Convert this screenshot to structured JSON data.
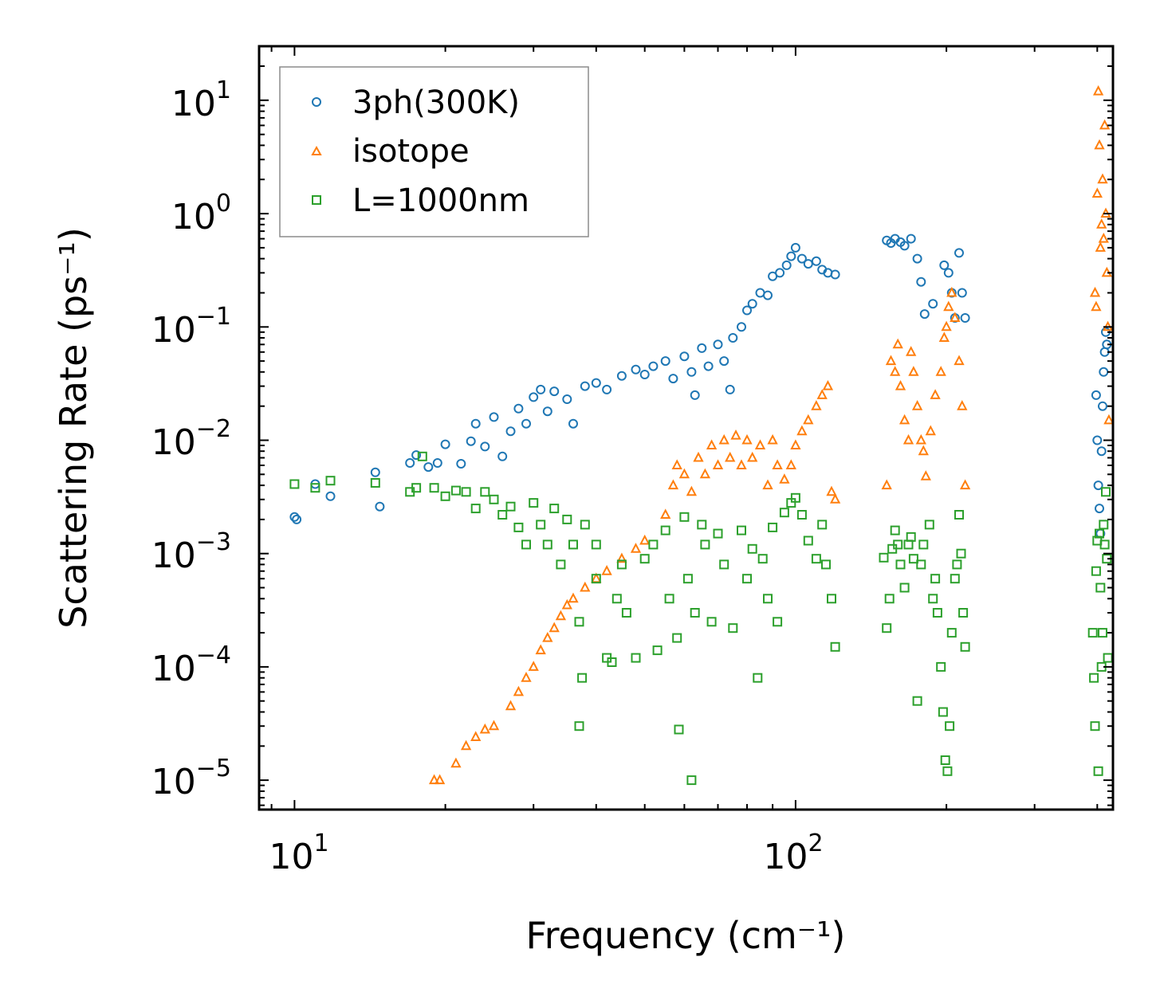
{
  "chart_data": {
    "type": "scatter",
    "title": "",
    "xlabel": "Frequency (cm⁻¹)",
    "ylabel": "Scattering Rate (ps⁻¹)",
    "xscale": "log",
    "yscale": "log",
    "xlim": [
      8.5,
      430
    ],
    "ylim": [
      5.5e-06,
      30
    ],
    "grid": false,
    "legend_position": "top-left",
    "x_tick_labels": [
      {
        "value": 10,
        "base": "10",
        "exp": "1"
      },
      {
        "value": 100,
        "base": "10",
        "exp": "2"
      }
    ],
    "y_tick_labels": [
      {
        "value": 10,
        "base": "10",
        "exp": "1"
      },
      {
        "value": 1,
        "base": "10",
        "exp": "0"
      },
      {
        "value": 0.1,
        "base": "10",
        "exp": "−1"
      },
      {
        "value": 0.01,
        "base": "10",
        "exp": "−2"
      },
      {
        "value": 0.001,
        "base": "10",
        "exp": "−3"
      },
      {
        "value": 0.0001,
        "base": "10",
        "exp": "−4"
      },
      {
        "value": 1e-05,
        "base": "10",
        "exp": "−5"
      }
    ],
    "series": [
      {
        "name": "3ph(300K)",
        "marker": "circle",
        "color": "#1f77b4",
        "points": [
          [
            10,
            0.0021
          ],
          [
            10.1,
            0.002
          ],
          [
            11,
            0.0041
          ],
          [
            11.8,
            0.0032
          ],
          [
            14.5,
            0.0052
          ],
          [
            14.8,
            0.0026
          ],
          [
            17,
            0.0063
          ],
          [
            17.5,
            0.0074
          ],
          [
            18.5,
            0.0058
          ],
          [
            19.3,
            0.0063
          ],
          [
            20,
            0.0092
          ],
          [
            21.5,
            0.0062
          ],
          [
            22.5,
            0.0098
          ],
          [
            23,
            0.014
          ],
          [
            24,
            0.0088
          ],
          [
            25,
            0.016
          ],
          [
            26,
            0.0072
          ],
          [
            27,
            0.012
          ],
          [
            28,
            0.019
          ],
          [
            29,
            0.014
          ],
          [
            30,
            0.024
          ],
          [
            31,
            0.028
          ],
          [
            32,
            0.018
          ],
          [
            33,
            0.027
          ],
          [
            35,
            0.023
          ],
          [
            36,
            0.014
          ],
          [
            38,
            0.03
          ],
          [
            40,
            0.032
          ],
          [
            42,
            0.028
          ],
          [
            45,
            0.037
          ],
          [
            48,
            0.042
          ],
          [
            50,
            0.038
          ],
          [
            52,
            0.045
          ],
          [
            55,
            0.05
          ],
          [
            57,
            0.035
          ],
          [
            60,
            0.055
          ],
          [
            62,
            0.04
          ],
          [
            63,
            0.025
          ],
          [
            65,
            0.065
          ],
          [
            67,
            0.045
          ],
          [
            70,
            0.07
          ],
          [
            72,
            0.05
          ],
          [
            74,
            0.028
          ],
          [
            75,
            0.08
          ],
          [
            78,
            0.1
          ],
          [
            80,
            0.14
          ],
          [
            82,
            0.16
          ],
          [
            85,
            0.2
          ],
          [
            88,
            0.19
          ],
          [
            90,
            0.28
          ],
          [
            93,
            0.3
          ],
          [
            96,
            0.35
          ],
          [
            98,
            0.42
          ],
          [
            100,
            0.5
          ],
          [
            103,
            0.4
          ],
          [
            106,
            0.36
          ],
          [
            110,
            0.38
          ],
          [
            113,
            0.32
          ],
          [
            116,
            0.3
          ],
          [
            120,
            0.29
          ],
          [
            152,
            0.58
          ],
          [
            155,
            0.55
          ],
          [
            158,
            0.6
          ],
          [
            162,
            0.56
          ],
          [
            165,
            0.52
          ],
          [
            170,
            0.6
          ],
          [
            175,
            0.4
          ],
          [
            178,
            0.25
          ],
          [
            181,
            0.13
          ],
          [
            188,
            0.16
          ],
          [
            198,
            0.35
          ],
          [
            202,
            0.3
          ],
          [
            205,
            0.2
          ],
          [
            208,
            0.12
          ],
          [
            212,
            0.45
          ],
          [
            215,
            0.2
          ],
          [
            218,
            0.12
          ],
          [
            398,
            0.025
          ],
          [
            400,
            0.01
          ],
          [
            402,
            0.004
          ],
          [
            404,
            0.0025
          ],
          [
            406,
            0.0015
          ],
          [
            408,
            0.008
          ],
          [
            410,
            0.02
          ],
          [
            412,
            0.04
          ],
          [
            414,
            0.06
          ],
          [
            416,
            0.09
          ],
          [
            418,
            0.07
          ]
        ]
      },
      {
        "name": "isotope",
        "marker": "triangle",
        "color": "#ff7f0e",
        "points": [
          [
            19,
            1e-05
          ],
          [
            19.5,
            1e-05
          ],
          [
            21,
            1.4e-05
          ],
          [
            22,
            2e-05
          ],
          [
            23,
            2.4e-05
          ],
          [
            24,
            2.8e-05
          ],
          [
            25,
            3e-05
          ],
          [
            27,
            4.5e-05
          ],
          [
            28,
            6e-05
          ],
          [
            29,
            8e-05
          ],
          [
            30,
            0.0001
          ],
          [
            31,
            0.00014
          ],
          [
            32,
            0.00018
          ],
          [
            33,
            0.00022
          ],
          [
            34,
            0.00028
          ],
          [
            35,
            0.00035
          ],
          [
            36,
            0.0004
          ],
          [
            38,
            0.0005
          ],
          [
            40,
            0.0006
          ],
          [
            42,
            0.0007
          ],
          [
            45,
            0.0009
          ],
          [
            48,
            0.0011
          ],
          [
            50,
            0.0013
          ],
          [
            55,
            0.0022
          ],
          [
            57,
            0.004
          ],
          [
            58,
            0.006
          ],
          [
            60,
            0.005
          ],
          [
            62,
            0.0035
          ],
          [
            64,
            0.007
          ],
          [
            66,
            0.005
          ],
          [
            68,
            0.009
          ],
          [
            70,
            0.006
          ],
          [
            72,
            0.01
          ],
          [
            74,
            0.007
          ],
          [
            76,
            0.011
          ],
          [
            78,
            0.006
          ],
          [
            80,
            0.01
          ],
          [
            82,
            0.007
          ],
          [
            85,
            0.009
          ],
          [
            88,
            0.004
          ],
          [
            90,
            0.01
          ],
          [
            92,
            0.006
          ],
          [
            95,
            0.0045
          ],
          [
            98,
            0.006
          ],
          [
            100,
            0.009
          ],
          [
            103,
            0.012
          ],
          [
            106,
            0.015
          ],
          [
            110,
            0.02
          ],
          [
            113,
            0.025
          ],
          [
            116,
            0.03
          ],
          [
            118,
            0.0035
          ],
          [
            120,
            0.003
          ],
          [
            152,
            0.004
          ],
          [
            155,
            0.05
          ],
          [
            158,
            0.04
          ],
          [
            160,
            0.07
          ],
          [
            162,
            0.03
          ],
          [
            165,
            0.015
          ],
          [
            168,
            0.01
          ],
          [
            170,
            0.06
          ],
          [
            172,
            0.04
          ],
          [
            175,
            0.02
          ],
          [
            178,
            0.01
          ],
          [
            180,
            0.008
          ],
          [
            182,
            0.0048
          ],
          [
            186,
            0.012
          ],
          [
            190,
            0.025
          ],
          [
            195,
            0.04
          ],
          [
            198,
            0.08
          ],
          [
            200,
            0.1
          ],
          [
            202,
            0.15
          ],
          [
            205,
            0.2
          ],
          [
            208,
            0.12
          ],
          [
            212,
            0.05
          ],
          [
            215,
            0.02
          ],
          [
            218,
            0.004
          ],
          [
            396,
            0.2
          ],
          [
            398,
            0.15
          ],
          [
            400,
            1.5
          ],
          [
            402,
            12
          ],
          [
            404,
            4
          ],
          [
            406,
            0.5
          ],
          [
            408,
            0.8
          ],
          [
            410,
            2
          ],
          [
            412,
            0.6
          ],
          [
            414,
            6
          ],
          [
            416,
            1
          ],
          [
            418,
            0.3
          ],
          [
            420,
            0.1
          ],
          [
            422,
            0.015
          ]
        ]
      },
      {
        "name": "L=1000nm",
        "marker": "square",
        "color": "#2ca02c",
        "points": [
          [
            10,
            0.0041
          ],
          [
            11,
            0.0038
          ],
          [
            11.8,
            0.0044
          ],
          [
            14.5,
            0.0042
          ],
          [
            17,
            0.0035
          ],
          [
            17.5,
            0.0038
          ],
          [
            18,
            0.0072
          ],
          [
            19,
            0.0038
          ],
          [
            20,
            0.0032
          ],
          [
            21,
            0.0036
          ],
          [
            22,
            0.0035
          ],
          [
            23,
            0.0025
          ],
          [
            24,
            0.0035
          ],
          [
            25,
            0.003
          ],
          [
            26,
            0.0022
          ],
          [
            27,
            0.0026
          ],
          [
            28,
            0.0017
          ],
          [
            29,
            0.0012
          ],
          [
            30,
            0.0028
          ],
          [
            31,
            0.0018
          ],
          [
            32,
            0.0012
          ],
          [
            33,
            0.0025
          ],
          [
            34,
            0.0008
          ],
          [
            35,
            0.002
          ],
          [
            36,
            0.0012
          ],
          [
            37,
            0.00025
          ],
          [
            37.5,
            8e-05
          ],
          [
            37,
            3e-05
          ],
          [
            38,
            0.0018
          ],
          [
            40,
            0.0012
          ],
          [
            40,
            0.0006
          ],
          [
            42,
            0.00012
          ],
          [
            43,
            0.00011
          ],
          [
            44,
            0.0004
          ],
          [
            45,
            0.0008
          ],
          [
            46,
            0.0003
          ],
          [
            48,
            0.00012
          ],
          [
            50,
            0.0009
          ],
          [
            52,
            0.0012
          ],
          [
            53,
            0.00014
          ],
          [
            55,
            0.0016
          ],
          [
            56,
            0.0004
          ],
          [
            58,
            0.00018
          ],
          [
            58.5,
            2.8e-05
          ],
          [
            60,
            0.0021
          ],
          [
            61,
            0.0006
          ],
          [
            62,
            1e-05
          ],
          [
            63,
            0.0003
          ],
          [
            65,
            0.0018
          ],
          [
            66,
            0.0012
          ],
          [
            68,
            0.00025
          ],
          [
            70,
            0.0015
          ],
          [
            72,
            0.0008
          ],
          [
            75,
            0.00022
          ],
          [
            78,
            0.0016
          ],
          [
            80,
            0.0006
          ],
          [
            82,
            0.0011
          ],
          [
            84,
            8e-05
          ],
          [
            86,
            0.0009
          ],
          [
            88,
            0.0004
          ],
          [
            90,
            0.0017
          ],
          [
            92,
            0.00025
          ],
          [
            95,
            0.0023
          ],
          [
            98,
            0.0028
          ],
          [
            100,
            0.0031
          ],
          [
            103,
            0.0022
          ],
          [
            106,
            0.0013
          ],
          [
            110,
            0.0009
          ],
          [
            113,
            0.0018
          ],
          [
            115,
            0.0008
          ],
          [
            118,
            0.0004
          ],
          [
            120,
            0.00015
          ],
          [
            150,
            0.00092
          ],
          [
            152,
            0.00022
          ],
          [
            154,
            0.0004
          ],
          [
            156,
            0.0011
          ],
          [
            158,
            0.0016
          ],
          [
            160,
            0.0012
          ],
          [
            162,
            0.0008
          ],
          [
            165,
            0.0005
          ],
          [
            168,
            0.0012
          ],
          [
            170,
            0.0014
          ],
          [
            172,
            0.0009
          ],
          [
            175,
            5e-05
          ],
          [
            178,
            0.0008
          ],
          [
            180,
            0.0012
          ],
          [
            185,
            0.0018
          ],
          [
            188,
            0.0004
          ],
          [
            190,
            0.0006
          ],
          [
            192,
            0.0003
          ],
          [
            195,
            0.0001
          ],
          [
            197,
            4e-05
          ],
          [
            199,
            1.5e-05
          ],
          [
            201,
            1.2e-05
          ],
          [
            203,
            3e-05
          ],
          [
            205,
            0.0002
          ],
          [
            208,
            0.0006
          ],
          [
            210,
            0.0008
          ],
          [
            212,
            0.0022
          ],
          [
            214,
            0.001
          ],
          [
            216,
            0.0003
          ],
          [
            218,
            0.00015
          ],
          [
            392,
            0.0002
          ],
          [
            394,
            8e-05
          ],
          [
            396,
            3e-05
          ],
          [
            398,
            0.0007
          ],
          [
            400,
            0.0013
          ],
          [
            402,
            1.2e-05
          ],
          [
            404,
            0.0015
          ],
          [
            406,
            0.0005
          ],
          [
            408,
            0.0001
          ],
          [
            410,
            0.0002
          ],
          [
            412,
            0.0018
          ],
          [
            414,
            0.0012
          ],
          [
            416,
            0.0035
          ],
          [
            418,
            0.0009
          ],
          [
            420,
            0.00012
          ]
        ]
      }
    ]
  }
}
